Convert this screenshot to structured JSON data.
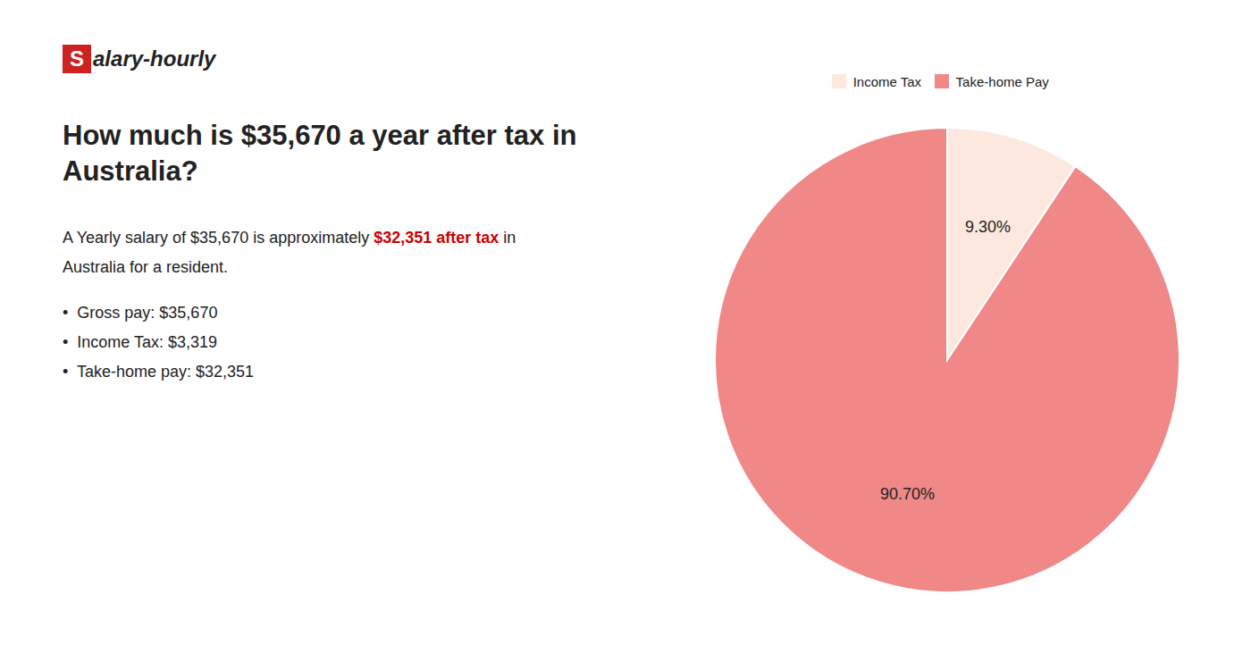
{
  "chart_data": {
    "type": "pie",
    "title": "How much is $35,670 a year after tax in\nAustralia?",
    "categories": [
      "Income Tax",
      "Take-home Pay"
    ],
    "values": [
      9.3,
      90.7
    ],
    "value_labels": [
      "9.30%",
      "90.70%"
    ],
    "colors": [
      "#fce8de",
      "#f08888"
    ],
    "data_labels": true,
    "legend": "top",
    "annotations": [
      [
        {
          "text": "S",
          "color": "#cc2222"
        },
        {
          "text": "alary-hourly"
        }
      ],
      [
        {
          "text": "A Yearly salary of $35,670 is approximately "
        },
        {
          "text": "$32,351 after tax",
          "color": "#cc0000"
        },
        {
          "text": " in"
        }
      ],
      [
        {
          "text": "Australia for a resident."
        }
      ],
      [
        {
          "text": "•  Gross pay: $35,670"
        }
      ],
      [
        {
          "text": "•  Income Tax: $3,319"
        }
      ],
      [
        {
          "text": "•  Take-home pay: $32,351"
        }
      ]
    ]
  }
}
